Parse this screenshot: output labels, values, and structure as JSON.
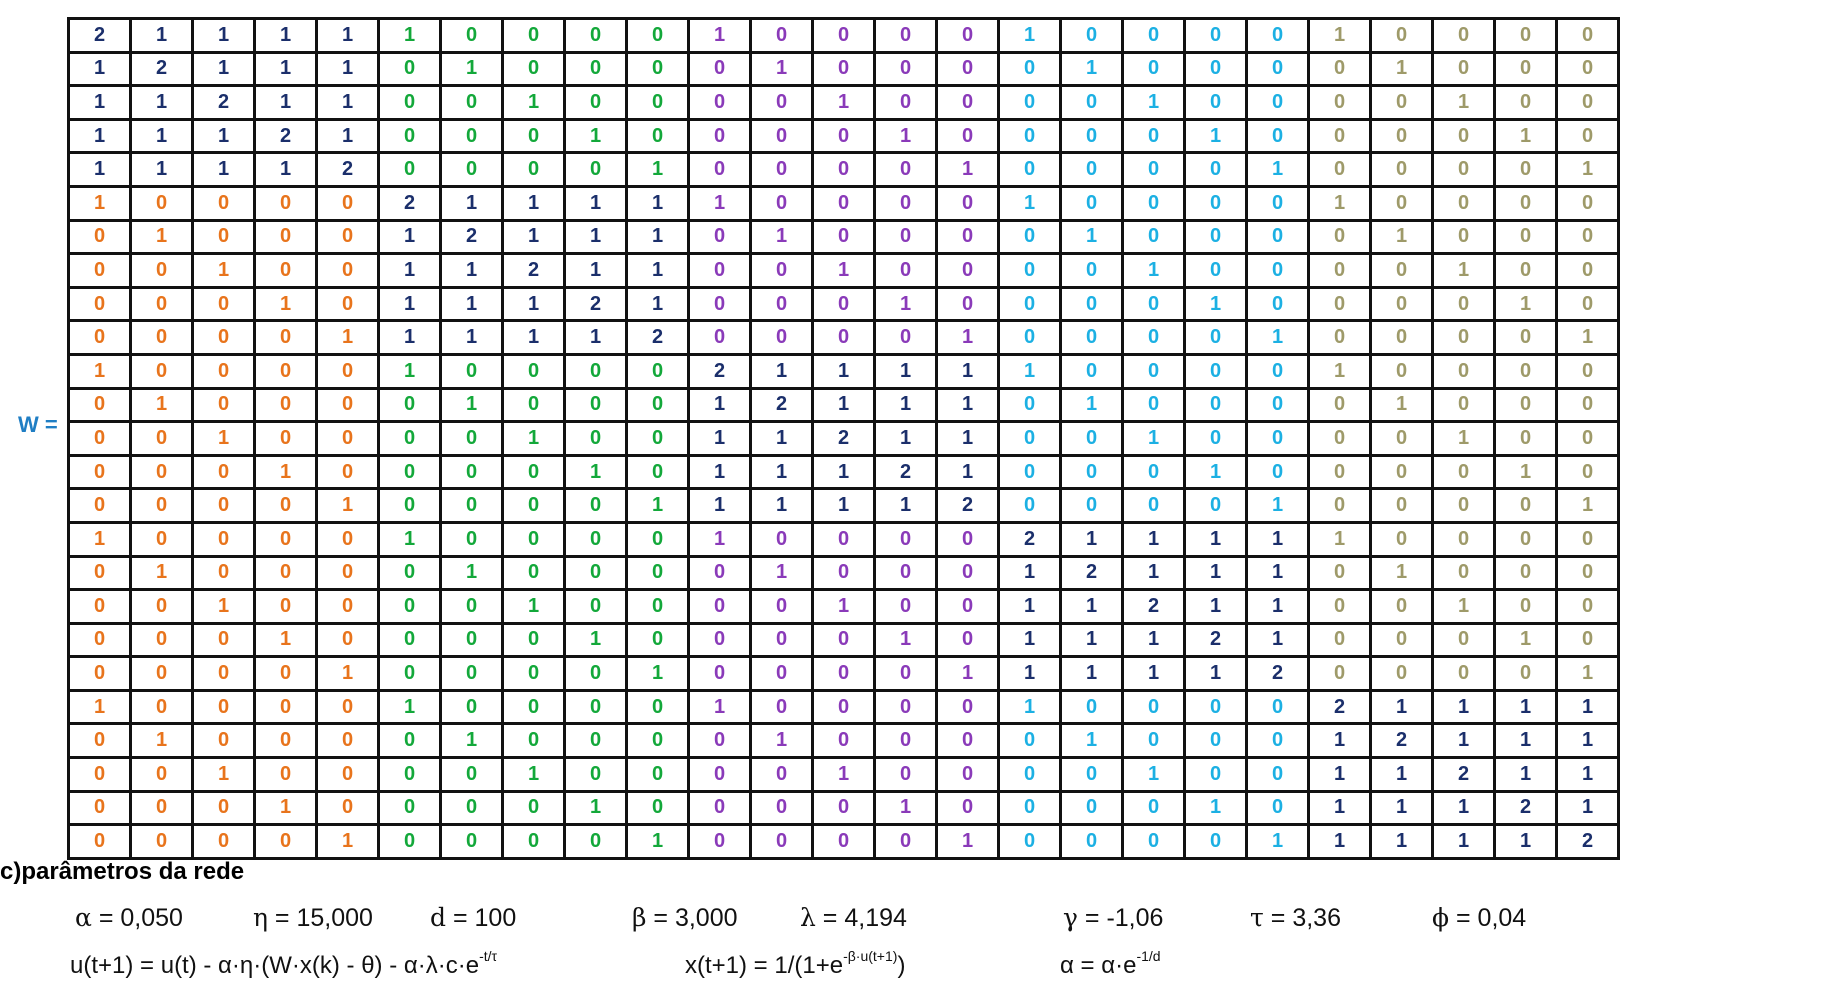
{
  "matrix_label": "W =",
  "block_colors": [
    "#e8741c",
    "#13a83a",
    "#8a3ab9",
    "#1cb0e3",
    "#9e9a69"
  ],
  "diagonal_color": "#1b2f6b",
  "matrix": [
    [
      2,
      1,
      1,
      1,
      1,
      1,
      0,
      0,
      0,
      0,
      1,
      0,
      0,
      0,
      0,
      1,
      0,
      0,
      0,
      0,
      1,
      0,
      0,
      0,
      0
    ],
    [
      1,
      2,
      1,
      1,
      1,
      0,
      1,
      0,
      0,
      0,
      0,
      1,
      0,
      0,
      0,
      0,
      1,
      0,
      0,
      0,
      0,
      1,
      0,
      0,
      0
    ],
    [
      1,
      1,
      2,
      1,
      1,
      0,
      0,
      1,
      0,
      0,
      0,
      0,
      1,
      0,
      0,
      0,
      0,
      1,
      0,
      0,
      0,
      0,
      1,
      0,
      0
    ],
    [
      1,
      1,
      1,
      2,
      1,
      0,
      0,
      0,
      1,
      0,
      0,
      0,
      0,
      1,
      0,
      0,
      0,
      0,
      1,
      0,
      0,
      0,
      0,
      1,
      0
    ],
    [
      1,
      1,
      1,
      1,
      2,
      0,
      0,
      0,
      0,
      1,
      0,
      0,
      0,
      0,
      1,
      0,
      0,
      0,
      0,
      1,
      0,
      0,
      0,
      0,
      1
    ],
    [
      1,
      0,
      0,
      0,
      0,
      2,
      1,
      1,
      1,
      1,
      1,
      0,
      0,
      0,
      0,
      1,
      0,
      0,
      0,
      0,
      1,
      0,
      0,
      0,
      0
    ],
    [
      0,
      1,
      0,
      0,
      0,
      1,
      2,
      1,
      1,
      1,
      0,
      1,
      0,
      0,
      0,
      0,
      1,
      0,
      0,
      0,
      0,
      1,
      0,
      0,
      0
    ],
    [
      0,
      0,
      1,
      0,
      0,
      1,
      1,
      2,
      1,
      1,
      0,
      0,
      1,
      0,
      0,
      0,
      0,
      1,
      0,
      0,
      0,
      0,
      1,
      0,
      0
    ],
    [
      0,
      0,
      0,
      1,
      0,
      1,
      1,
      1,
      2,
      1,
      0,
      0,
      0,
      1,
      0,
      0,
      0,
      0,
      1,
      0,
      0,
      0,
      0,
      1,
      0
    ],
    [
      0,
      0,
      0,
      0,
      1,
      1,
      1,
      1,
      1,
      2,
      0,
      0,
      0,
      0,
      1,
      0,
      0,
      0,
      0,
      1,
      0,
      0,
      0,
      0,
      1
    ],
    [
      1,
      0,
      0,
      0,
      0,
      1,
      0,
      0,
      0,
      0,
      2,
      1,
      1,
      1,
      1,
      1,
      0,
      0,
      0,
      0,
      1,
      0,
      0,
      0,
      0
    ],
    [
      0,
      1,
      0,
      0,
      0,
      0,
      1,
      0,
      0,
      0,
      1,
      2,
      1,
      1,
      1,
      0,
      1,
      0,
      0,
      0,
      0,
      1,
      0,
      0,
      0
    ],
    [
      0,
      0,
      1,
      0,
      0,
      0,
      0,
      1,
      0,
      0,
      1,
      1,
      2,
      1,
      1,
      0,
      0,
      1,
      0,
      0,
      0,
      0,
      1,
      0,
      0
    ],
    [
      0,
      0,
      0,
      1,
      0,
      0,
      0,
      0,
      1,
      0,
      1,
      1,
      1,
      2,
      1,
      0,
      0,
      0,
      1,
      0,
      0,
      0,
      0,
      1,
      0
    ],
    [
      0,
      0,
      0,
      0,
      1,
      0,
      0,
      0,
      0,
      1,
      1,
      1,
      1,
      1,
      2,
      0,
      0,
      0,
      0,
      1,
      0,
      0,
      0,
      0,
      1
    ],
    [
      1,
      0,
      0,
      0,
      0,
      1,
      0,
      0,
      0,
      0,
      1,
      0,
      0,
      0,
      0,
      2,
      1,
      1,
      1,
      1,
      1,
      0,
      0,
      0,
      0
    ],
    [
      0,
      1,
      0,
      0,
      0,
      0,
      1,
      0,
      0,
      0,
      0,
      1,
      0,
      0,
      0,
      1,
      2,
      1,
      1,
      1,
      0,
      1,
      0,
      0,
      0
    ],
    [
      0,
      0,
      1,
      0,
      0,
      0,
      0,
      1,
      0,
      0,
      0,
      0,
      1,
      0,
      0,
      1,
      1,
      2,
      1,
      1,
      0,
      0,
      1,
      0,
      0
    ],
    [
      0,
      0,
      0,
      1,
      0,
      0,
      0,
      0,
      1,
      0,
      0,
      0,
      0,
      1,
      0,
      1,
      1,
      1,
      2,
      1,
      0,
      0,
      0,
      1,
      0
    ],
    [
      0,
      0,
      0,
      0,
      1,
      0,
      0,
      0,
      0,
      1,
      0,
      0,
      0,
      0,
      1,
      1,
      1,
      1,
      1,
      2,
      0,
      0,
      0,
      0,
      1
    ],
    [
      1,
      0,
      0,
      0,
      0,
      1,
      0,
      0,
      0,
      0,
      1,
      0,
      0,
      0,
      0,
      1,
      0,
      0,
      0,
      0,
      2,
      1,
      1,
      1,
      1
    ],
    [
      0,
      1,
      0,
      0,
      0,
      0,
      1,
      0,
      0,
      0,
      0,
      1,
      0,
      0,
      0,
      0,
      1,
      0,
      0,
      0,
      1,
      2,
      1,
      1,
      1
    ],
    [
      0,
      0,
      1,
      0,
      0,
      0,
      0,
      1,
      0,
      0,
      0,
      0,
      1,
      0,
      0,
      0,
      0,
      1,
      0,
      0,
      1,
      1,
      2,
      1,
      1
    ],
    [
      0,
      0,
      0,
      1,
      0,
      0,
      0,
      0,
      1,
      0,
      0,
      0,
      0,
      1,
      0,
      0,
      0,
      0,
      1,
      0,
      1,
      1,
      1,
      2,
      1
    ],
    [
      0,
      0,
      0,
      0,
      1,
      0,
      0,
      0,
      0,
      1,
      0,
      0,
      0,
      0,
      1,
      0,
      0,
      0,
      0,
      1,
      1,
      1,
      1,
      1,
      2
    ]
  ],
  "section_heading": "c)parâmetros da rede",
  "params": [
    {
      "symbol": "α",
      "text": " = 0,050"
    },
    {
      "symbol": "η",
      "text": " = 15,000"
    },
    {
      "symbol": "d",
      "text": " =  100"
    },
    {
      "symbol": "β",
      "text": " = 3,000"
    },
    {
      "symbol": "λ",
      "text": " = 4,194"
    },
    {
      "symbol": "γ",
      "text": " = -1,06"
    },
    {
      "symbol": "τ",
      "text": " = 3,36"
    },
    {
      "symbol": "ϕ",
      "text": " = 0,04"
    }
  ],
  "formulas": {
    "update_u": {
      "main": "u(t+1) = u(t) - α·η·(W·x(k) - θ) - α·λ·c·e",
      "sup": "-t/τ"
    },
    "update_x": {
      "main": "x(t+1) = 1/(1+e",
      "sup": "-β·u(t+1)",
      "tail": ")"
    },
    "update_alpha": {
      "main": "α = α·e",
      "sup": "-1/d"
    }
  }
}
